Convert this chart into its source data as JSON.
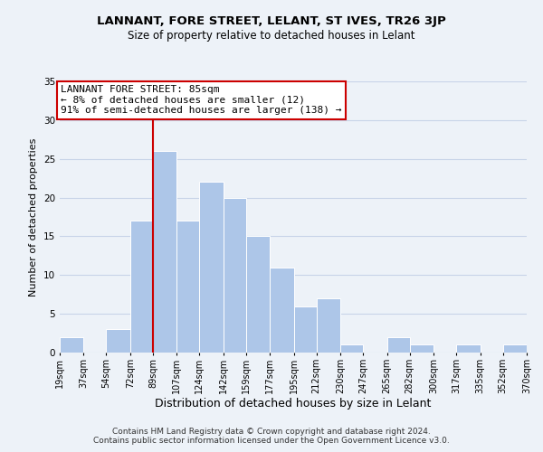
{
  "title": "LANNANT, FORE STREET, LELANT, ST IVES, TR26 3JP",
  "subtitle": "Size of property relative to detached houses in Lelant",
  "xlabel": "Distribution of detached houses by size in Lelant",
  "ylabel": "Number of detached properties",
  "bar_edges": [
    19,
    37,
    54,
    72,
    89,
    107,
    124,
    142,
    159,
    177,
    195,
    212,
    230,
    247,
    265,
    282,
    300,
    317,
    335,
    352,
    370
  ],
  "bar_heights": [
    2,
    0,
    3,
    17,
    26,
    17,
    22,
    20,
    15,
    11,
    6,
    7,
    1,
    0,
    2,
    1,
    0,
    1,
    0,
    1
  ],
  "bar_color": "#adc6e8",
  "bar_edgecolor": "white",
  "grid_color": "#c8d4e8",
  "bg_color": "#edf2f8",
  "vline_x": 89,
  "vline_color": "#cc0000",
  "annotation_title": "LANNANT FORE STREET: 85sqm",
  "annotation_line1": "← 8% of detached houses are smaller (12)",
  "annotation_line2": "91% of semi-detached houses are larger (138) →",
  "annotation_box_facecolor": "#ffffff",
  "annotation_box_edgecolor": "#cc0000",
  "tick_labels": [
    "19sqm",
    "37sqm",
    "54sqm",
    "72sqm",
    "89sqm",
    "107sqm",
    "124sqm",
    "142sqm",
    "159sqm",
    "177sqm",
    "195sqm",
    "212sqm",
    "230sqm",
    "247sqm",
    "265sqm",
    "282sqm",
    "300sqm",
    "317sqm",
    "335sqm",
    "352sqm",
    "370sqm"
  ],
  "ylim": [
    0,
    35
  ],
  "yticks": [
    0,
    5,
    10,
    15,
    20,
    25,
    30,
    35
  ],
  "footer_line1": "Contains HM Land Registry data © Crown copyright and database right 2024.",
  "footer_line2": "Contains public sector information licensed under the Open Government Licence v3.0.",
  "title_fontsize": 9.5,
  "subtitle_fontsize": 8.5,
  "xlabel_fontsize": 9,
  "ylabel_fontsize": 8,
  "tick_fontsize": 7,
  "footer_fontsize": 6.5,
  "annotation_fontsize": 8
}
